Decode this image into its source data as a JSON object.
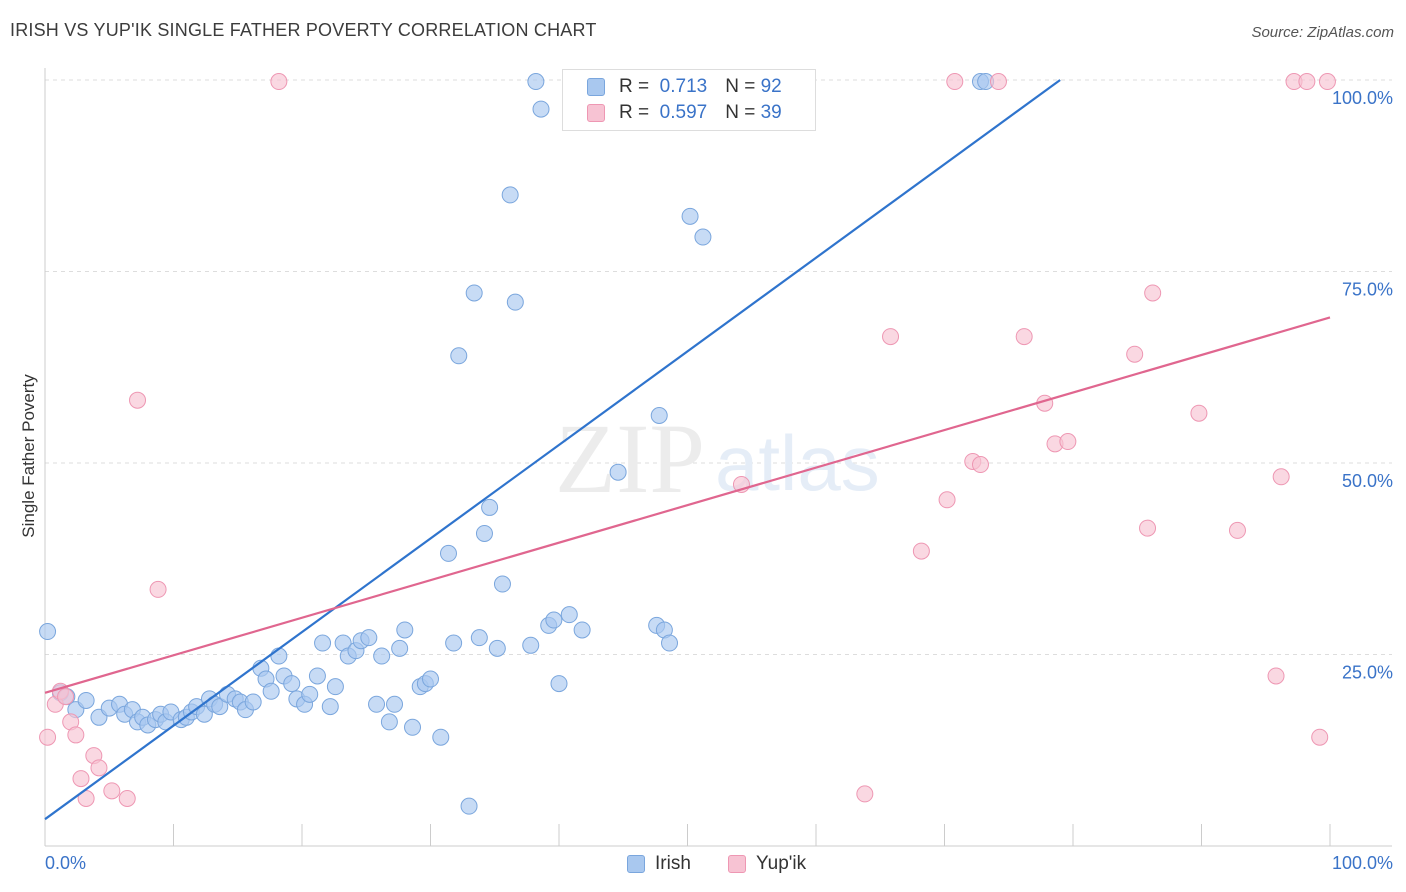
{
  "title": "IRISH VS YUP'IK SINGLE FATHER POVERTY CORRELATION CHART",
  "source": "Source: ZipAtlas.com",
  "watermark": {
    "zip": "ZIP",
    "atlas": "atlas"
  },
  "legend": {
    "r_label": "R =",
    "n_label": "N =",
    "rows": [
      {
        "r": "0.713",
        "n": "92"
      },
      {
        "r": "0.597",
        "n": "39"
      }
    ]
  },
  "colors": {
    "irish_fill": "#a9c8ef",
    "irish_stroke": "#7aa6dd",
    "irish_line": "#2f74cd",
    "yupik_fill": "#f7c3d3",
    "yupik_stroke": "#ee97b3",
    "yupik_line": "#e0668f",
    "axis_label": "#3a73c8",
    "grid": "#dddddd"
  },
  "chart_data": {
    "type": "scatter",
    "title": "IRISH VS YUP'IK SINGLE FATHER POVERTY CORRELATION CHART",
    "xlabel": "",
    "ylabel": "Single Father Poverty",
    "xlim": [
      0,
      100
    ],
    "ylim": [
      0,
      100
    ],
    "x_tick_labels": [
      "0.0%",
      "100.0%"
    ],
    "y_tick_values": [
      25,
      50,
      75,
      100
    ],
    "y_tick_labels": [
      "25.0%",
      "50.0%",
      "75.0%",
      "100.0%"
    ],
    "grid": true,
    "legend_position": "top-center",
    "series": [
      {
        "name": "Irish",
        "r": 0.713,
        "n": 92,
        "trend": {
          "x": [
            0,
            79
          ],
          "y": [
            3.5,
            100
          ]
        },
        "points": [
          {
            "x": 0.2,
            "y": 28
          },
          {
            "x": 1.2,
            "y": 20
          },
          {
            "x": 1.7,
            "y": 19.5
          },
          {
            "x": 2.4,
            "y": 17.8
          },
          {
            "x": 3.2,
            "y": 19
          },
          {
            "x": 4.2,
            "y": 16.8
          },
          {
            "x": 5.0,
            "y": 18
          },
          {
            "x": 5.8,
            "y": 18.5
          },
          {
            "x": 6.2,
            "y": 17.2
          },
          {
            "x": 6.8,
            "y": 17.8
          },
          {
            "x": 7.2,
            "y": 16.2
          },
          {
            "x": 7.6,
            "y": 16.8
          },
          {
            "x": 8.0,
            "y": 15.8
          },
          {
            "x": 8.6,
            "y": 16.5
          },
          {
            "x": 9.0,
            "y": 17.2
          },
          {
            "x": 9.4,
            "y": 16.2
          },
          {
            "x": 9.8,
            "y": 17.5
          },
          {
            "x": 10.6,
            "y": 16.5
          },
          {
            "x": 11.0,
            "y": 16.8
          },
          {
            "x": 11.4,
            "y": 17.5
          },
          {
            "x": 11.8,
            "y": 18.2
          },
          {
            "x": 12.4,
            "y": 17.2
          },
          {
            "x": 12.8,
            "y": 19.2
          },
          {
            "x": 13.2,
            "y": 18.5
          },
          {
            "x": 13.6,
            "y": 18.2
          },
          {
            "x": 14.2,
            "y": 19.8
          },
          {
            "x": 14.8,
            "y": 19.2
          },
          {
            "x": 15.2,
            "y": 18.8
          },
          {
            "x": 15.6,
            "y": 17.8
          },
          {
            "x": 16.2,
            "y": 18.8
          },
          {
            "x": 16.8,
            "y": 23.2
          },
          {
            "x": 17.2,
            "y": 21.8
          },
          {
            "x": 17.6,
            "y": 20.2
          },
          {
            "x": 18.2,
            "y": 24.8
          },
          {
            "x": 18.6,
            "y": 22.2
          },
          {
            "x": 19.2,
            "y": 21.2
          },
          {
            "x": 19.6,
            "y": 19.2
          },
          {
            "x": 20.2,
            "y": 18.5
          },
          {
            "x": 20.6,
            "y": 19.8
          },
          {
            "x": 21.2,
            "y": 22.2
          },
          {
            "x": 21.6,
            "y": 26.5
          },
          {
            "x": 22.2,
            "y": 18.2
          },
          {
            "x": 22.6,
            "y": 20.8
          },
          {
            "x": 23.2,
            "y": 26.5
          },
          {
            "x": 23.6,
            "y": 24.8
          },
          {
            "x": 24.2,
            "y": 25.5
          },
          {
            "x": 24.6,
            "y": 26.8
          },
          {
            "x": 25.2,
            "y": 27.2
          },
          {
            "x": 25.8,
            "y": 18.5
          },
          {
            "x": 26.2,
            "y": 24.8
          },
          {
            "x": 26.8,
            "y": 16.2
          },
          {
            "x": 27.2,
            "y": 18.5
          },
          {
            "x": 27.6,
            "y": 25.8
          },
          {
            "x": 28.0,
            "y": 28.2
          },
          {
            "x": 28.6,
            "y": 15.5
          },
          {
            "x": 29.2,
            "y": 20.8
          },
          {
            "x": 29.6,
            "y": 21.2
          },
          {
            "x": 30.0,
            "y": 21.8
          },
          {
            "x": 30.8,
            "y": 14.2
          },
          {
            "x": 31.4,
            "y": 38.2
          },
          {
            "x": 31.8,
            "y": 26.5
          },
          {
            "x": 32.2,
            "y": 64
          },
          {
            "x": 33.0,
            "y": 5.2
          },
          {
            "x": 33.4,
            "y": 72.2
          },
          {
            "x": 33.8,
            "y": 27.2
          },
          {
            "x": 34.2,
            "y": 40.8
          },
          {
            "x": 34.6,
            "y": 44.2
          },
          {
            "x": 35.2,
            "y": 25.8
          },
          {
            "x": 35.6,
            "y": 34.2
          },
          {
            "x": 36.2,
            "y": 85
          },
          {
            "x": 36.6,
            "y": 71
          },
          {
            "x": 37.8,
            "y": 26.2
          },
          {
            "x": 38.2,
            "y": 99.8
          },
          {
            "x": 38.6,
            "y": 96.2
          },
          {
            "x": 39.2,
            "y": 28.8
          },
          {
            "x": 39.6,
            "y": 29.5
          },
          {
            "x": 40.0,
            "y": 21.2
          },
          {
            "x": 40.8,
            "y": 30.2
          },
          {
            "x": 41.8,
            "y": 28.2
          },
          {
            "x": 42.6,
            "y": 99.8
          },
          {
            "x": 44.6,
            "y": 48.8
          },
          {
            "x": 47.2,
            "y": 99.8
          },
          {
            "x": 47.6,
            "y": 28.8
          },
          {
            "x": 47.8,
            "y": 56.2
          },
          {
            "x": 48.2,
            "y": 28.2
          },
          {
            "x": 48.6,
            "y": 26.5
          },
          {
            "x": 50.2,
            "y": 82.2
          },
          {
            "x": 51.2,
            "y": 79.5
          },
          {
            "x": 54.6,
            "y": 99.8
          },
          {
            "x": 55.8,
            "y": 99.8
          },
          {
            "x": 72.8,
            "y": 99.8
          },
          {
            "x": 73.2,
            "y": 99.8
          }
        ]
      },
      {
        "name": "Yup'ik",
        "r": 0.597,
        "n": 39,
        "trend": {
          "x": [
            0,
            100
          ],
          "y": [
            20,
            69
          ]
        },
        "points": [
          {
            "x": 0.2,
            "y": 14.2
          },
          {
            "x": 0.8,
            "y": 18.5
          },
          {
            "x": 1.2,
            "y": 20.2
          },
          {
            "x": 1.6,
            "y": 19.5
          },
          {
            "x": 2.0,
            "y": 16.2
          },
          {
            "x": 2.4,
            "y": 14.5
          },
          {
            "x": 2.8,
            "y": 8.8
          },
          {
            "x": 3.2,
            "y": 6.2
          },
          {
            "x": 3.8,
            "y": 11.8
          },
          {
            "x": 4.2,
            "y": 10.2
          },
          {
            "x": 5.2,
            "y": 7.2
          },
          {
            "x": 6.4,
            "y": 6.2
          },
          {
            "x": 7.2,
            "y": 58.2
          },
          {
            "x": 8.8,
            "y": 33.5
          },
          {
            "x": 18.2,
            "y": 99.8
          },
          {
            "x": 54.2,
            "y": 47.2
          },
          {
            "x": 63.8,
            "y": 6.8
          },
          {
            "x": 65.8,
            "y": 66.5
          },
          {
            "x": 68.2,
            "y": 38.5
          },
          {
            "x": 70.2,
            "y": 45.2
          },
          {
            "x": 70.8,
            "y": 99.8
          },
          {
            "x": 72.2,
            "y": 50.2
          },
          {
            "x": 72.8,
            "y": 49.8
          },
          {
            "x": 74.2,
            "y": 99.8
          },
          {
            "x": 76.2,
            "y": 66.5
          },
          {
            "x": 77.8,
            "y": 57.8
          },
          {
            "x": 78.6,
            "y": 52.5
          },
          {
            "x": 79.6,
            "y": 52.8
          },
          {
            "x": 84.8,
            "y": 64.2
          },
          {
            "x": 85.8,
            "y": 41.5
          },
          {
            "x": 86.2,
            "y": 72.2
          },
          {
            "x": 89.8,
            "y": 56.5
          },
          {
            "x": 92.8,
            "y": 41.2
          },
          {
            "x": 95.8,
            "y": 22.2
          },
          {
            "x": 96.2,
            "y": 48.2
          },
          {
            "x": 97.2,
            "y": 99.8
          },
          {
            "x": 98.2,
            "y": 99.8
          },
          {
            "x": 99.2,
            "y": 14.2
          },
          {
            "x": 99.8,
            "y": 99.8
          }
        ]
      }
    ]
  },
  "bottom_legend": [
    "Irish",
    "Yup'ik"
  ]
}
